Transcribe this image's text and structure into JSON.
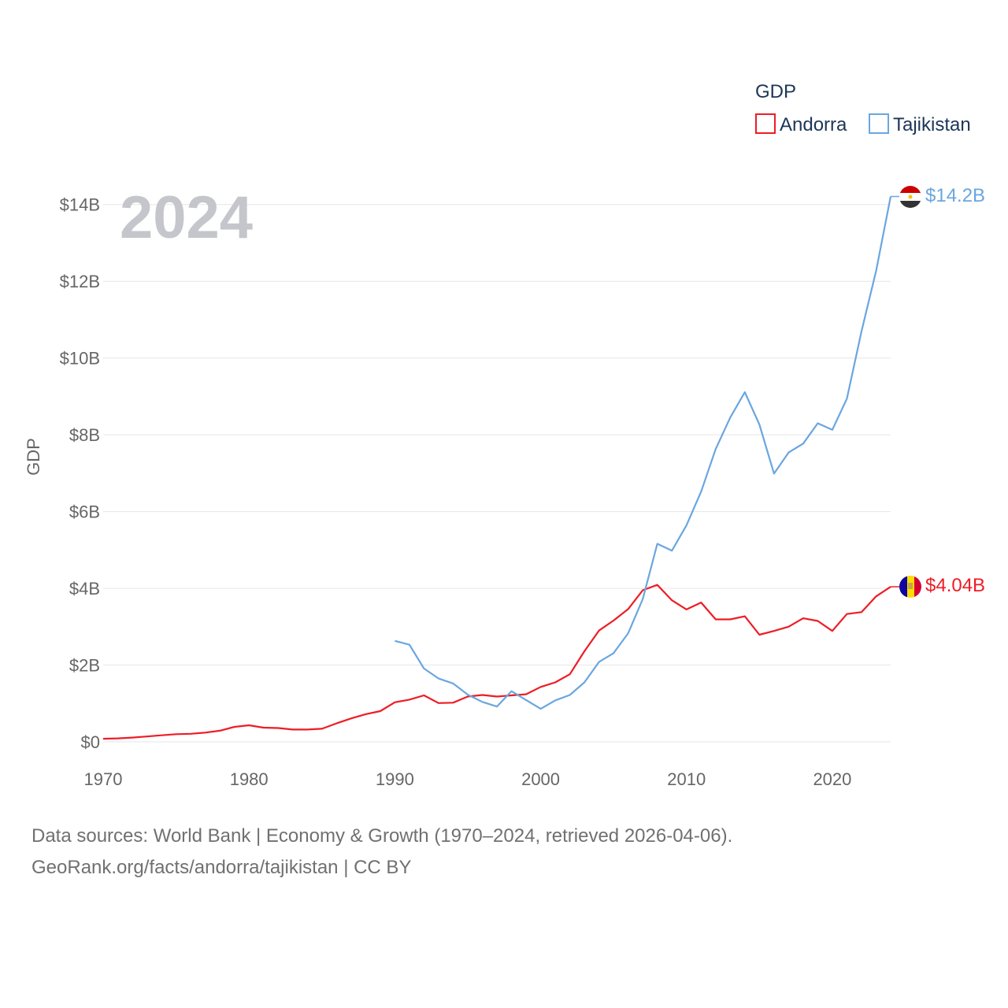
{
  "colors": {
    "andorra": "#ee1c25",
    "tajikistan": "#6aa6e0",
    "grid": "#e6e6e6",
    "tick_text": "#666666",
    "legend_text": "#1d3557",
    "year_overlay": "#c4c6cb"
  },
  "chart_data": {
    "type": "line",
    "title": "",
    "xlabel": "",
    "ylabel": "GDP",
    "xlim": [
      1970,
      2024
    ],
    "ylim": [
      0,
      14.2
    ],
    "x_ticks": [
      1970,
      1980,
      1990,
      2000,
      2010,
      2020
    ],
    "x_tick_labels": [
      "1970",
      "1980",
      "1990",
      "2000",
      "2010",
      "2020"
    ],
    "y_ticks": [
      0,
      2,
      4,
      6,
      8,
      10,
      12,
      14
    ],
    "y_tick_labels": [
      "$0",
      "$2B",
      "$4B",
      "$6B",
      "$8B",
      "$10B",
      "$12B",
      "$14B"
    ],
    "year_overlay": "2024",
    "legend": {
      "title": "GDP",
      "placement": "top-right",
      "entries": [
        "Andorra",
        "Tajikistan"
      ]
    },
    "series": [
      {
        "name": "Andorra",
        "color": "#ee1c25",
        "end_label": "$4.04B",
        "flag": "andorra-flag-icon",
        "x": [
          1970,
          1971,
          1972,
          1973,
          1974,
          1975,
          1976,
          1977,
          1978,
          1979,
          1980,
          1981,
          1982,
          1983,
          1984,
          1985,
          1986,
          1987,
          1988,
          1989,
          1990,
          1991,
          1992,
          1993,
          1994,
          1995,
          1996,
          1997,
          1998,
          1999,
          2000,
          2001,
          2002,
          2003,
          2004,
          2005,
          2006,
          2007,
          2008,
          2009,
          2010,
          2011,
          2012,
          2013,
          2014,
          2015,
          2016,
          2017,
          2018,
          2019,
          2020,
          2021,
          2022,
          2023,
          2024
        ],
        "values": [
          0.08,
          0.09,
          0.11,
          0.14,
          0.17,
          0.2,
          0.21,
          0.24,
          0.29,
          0.39,
          0.43,
          0.37,
          0.36,
          0.32,
          0.32,
          0.34,
          0.48,
          0.61,
          0.72,
          0.8,
          1.03,
          1.1,
          1.21,
          1.01,
          1.02,
          1.18,
          1.22,
          1.18,
          1.21,
          1.24,
          1.43,
          1.55,
          1.76,
          2.36,
          2.9,
          3.16,
          3.46,
          3.95,
          4.09,
          3.69,
          3.45,
          3.63,
          3.19,
          3.19,
          3.27,
          2.79,
          2.89,
          3.0,
          3.22,
          3.15,
          2.89,
          3.33,
          3.38,
          3.79,
          4.04
        ]
      },
      {
        "name": "Tajikistan",
        "color": "#6aa6e0",
        "end_label": "$14.2B",
        "flag": "tajikistan-flag-icon",
        "x": [
          1990,
          1991,
          1992,
          1993,
          1994,
          1995,
          1996,
          1997,
          1998,
          1999,
          2000,
          2001,
          2002,
          2003,
          2004,
          2005,
          2006,
          2007,
          2008,
          2009,
          2010,
          2011,
          2012,
          2013,
          2014,
          2015,
          2016,
          2017,
          2018,
          2019,
          2020,
          2021,
          2022,
          2023,
          2024
        ],
        "values": [
          2.63,
          2.53,
          1.91,
          1.65,
          1.52,
          1.23,
          1.04,
          0.92,
          1.32,
          1.09,
          0.86,
          1.08,
          1.22,
          1.55,
          2.08,
          2.31,
          2.83,
          3.72,
          5.16,
          4.98,
          5.64,
          6.52,
          7.63,
          8.45,
          9.11,
          8.27,
          6.99,
          7.54,
          7.77,
          8.3,
          8.13,
          8.94,
          10.7,
          12.27,
          14.21
        ]
      }
    ]
  },
  "footer": {
    "line1": "Data sources: World Bank | Economy & Growth (1970–2024, retrieved 2026-04-06).",
    "line2": "GeoRank.org/facts/andorra/tajikistan | CC BY"
  }
}
